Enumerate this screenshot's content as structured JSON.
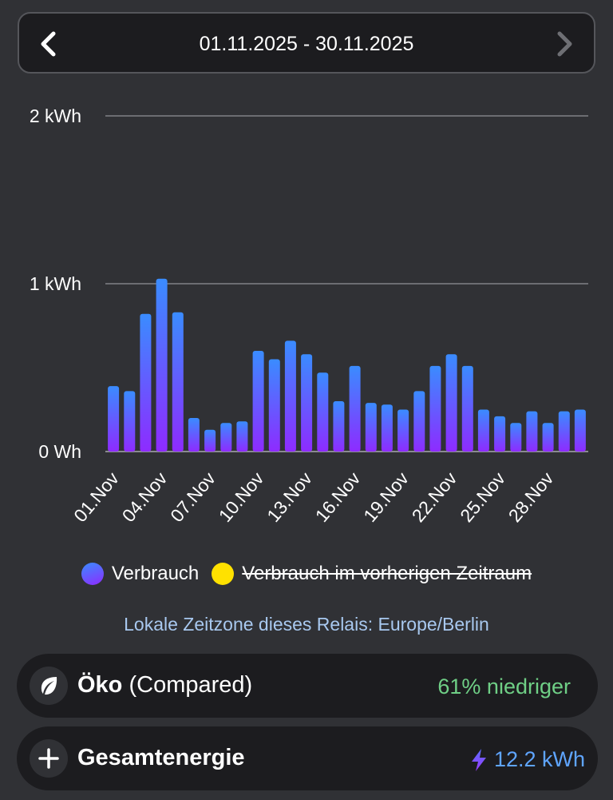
{
  "header": {
    "date_range": "01.11.2025 - 30.11.2025"
  },
  "chart_data": {
    "type": "bar",
    "title": "",
    "xlabel": "",
    "ylabel": "",
    "unit": "kWh",
    "ylim": [
      0,
      2
    ],
    "y_ticks": [
      {
        "value": 0,
        "label": "0 Wh"
      },
      {
        "value": 1,
        "label": "1 kWh"
      },
      {
        "value": 2,
        "label": "2 kWh"
      }
    ],
    "grid": true,
    "x_tick_labels": [
      "01.Nov",
      "04.Nov",
      "07.Nov",
      "10.Nov",
      "13.Nov",
      "16.Nov",
      "19.Nov",
      "22.Nov",
      "25.Nov",
      "28.Nov"
    ],
    "categories": [
      "01.Nov",
      "02.Nov",
      "03.Nov",
      "04.Nov",
      "05.Nov",
      "06.Nov",
      "07.Nov",
      "08.Nov",
      "09.Nov",
      "10.Nov",
      "11.Nov",
      "12.Nov",
      "13.Nov",
      "14.Nov",
      "15.Nov",
      "16.Nov",
      "17.Nov",
      "18.Nov",
      "19.Nov",
      "20.Nov",
      "21.Nov",
      "22.Nov",
      "23.Nov",
      "24.Nov",
      "25.Nov",
      "26.Nov",
      "27.Nov",
      "28.Nov",
      "29.Nov",
      "30.Nov"
    ],
    "series": [
      {
        "name": "Verbrauch",
        "values": [
          0.39,
          0.36,
          0.82,
          1.03,
          0.83,
          0.2,
          0.13,
          0.17,
          0.18,
          0.6,
          0.55,
          0.66,
          0.58,
          0.47,
          0.3,
          0.51,
          0.29,
          0.28,
          0.25,
          0.36,
          0.51,
          0.58,
          0.51,
          0.25,
          0.21,
          0.17,
          0.24,
          0.17,
          0.24,
          0.25
        ]
      }
    ],
    "legend": [
      {
        "label": "Verbrauch",
        "color": "#5b6dff",
        "active": true
      },
      {
        "label": "Verbrauch im vorherigen Zeitraum",
        "color": "#ffe100",
        "active": false
      }
    ],
    "legend_position": "bottom"
  },
  "timezone_note": "Lokale Zeitzone dieses Relais: Europe/Berlin",
  "eco_card": {
    "title": "Öko",
    "subtitle": "(Compared)",
    "value": "61% niedriger",
    "icon": "leaf-icon"
  },
  "energy_card": {
    "title": "Gesamtenergie",
    "value": "12.2 kWh",
    "icon": "plus-icon",
    "value_icon": "lightning-icon"
  },
  "colors": {
    "bar_top": "#3a8cff",
    "bar_bottom": "#8e2bff",
    "eco_value": "#6fcf86",
    "energy_value": "#5fa5ff"
  }
}
